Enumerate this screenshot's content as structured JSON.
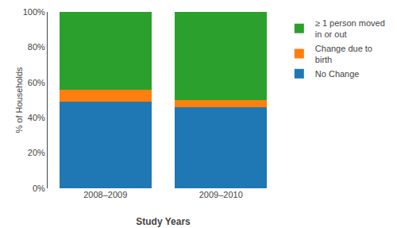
{
  "chart_data": {
    "type": "bar",
    "stacked": true,
    "categories": [
      "2008–2009",
      "2009–2010"
    ],
    "series": [
      {
        "name": "No Change",
        "values": [
          49,
          46
        ]
      },
      {
        "name": "Change due to\nbirth",
        "values": [
          7,
          4
        ]
      },
      {
        "name": "≥ 1 person moved\nin or out",
        "values": [
          44,
          50
        ]
      }
    ],
    "xlabel": "Study Years",
    "ylabel": "% of Households",
    "ylim": [
      0,
      100
    ],
    "yticks": [
      {
        "value": 0,
        "label": "0%"
      },
      {
        "value": 20,
        "label": "20%"
      },
      {
        "value": 40,
        "label": "40%"
      },
      {
        "value": 60,
        "label": "60%"
      },
      {
        "value": 80,
        "label": "80%"
      },
      {
        "value": 100,
        "label": "100%"
      }
    ],
    "grid": false,
    "legend": "right"
  }
}
